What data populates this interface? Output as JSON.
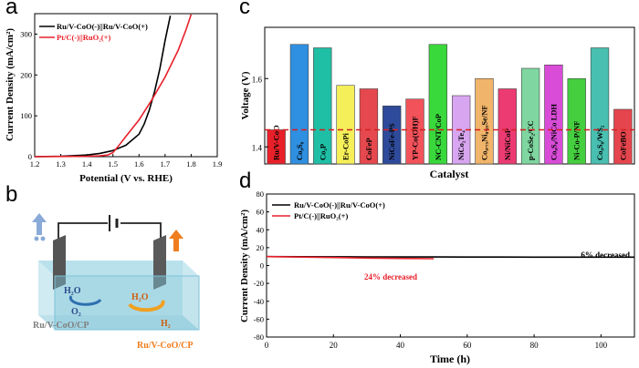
{
  "panels": {
    "a": "a",
    "b": "b",
    "c": "c",
    "d": "d"
  },
  "colors": {
    "black_curve": "#000000",
    "red_curve": "#e8202a",
    "dash_line": "#d42020",
    "cell_glass": "#a9dbe8",
    "cell_liquid": "#7cc3d8",
    "anode_arrow": "#f07d1e",
    "cathode_arrow": "#8aaad8",
    "label_gray": "#7f7f7f",
    "label_orange": "#f07d1e"
  },
  "panel_b": {
    "left_electrode_label": "Ru/V-CoO/CP",
    "right_electrode_label": "Ru/V-CoO/CP",
    "left_products": [
      "H₂O",
      "O₂"
    ],
    "right_products": [
      "H₂O",
      "H₂"
    ]
  },
  "chart_data": [
    {
      "id": "a",
      "type": "line",
      "xlabel": "Potential (V vs. RHE)",
      "ylabel": "Current Density (mA/cm²)",
      "xlim": [
        1.2,
        1.9
      ],
      "ylim": [
        0,
        350
      ],
      "xticks": [
        "1.2",
        "1.3",
        "1.4",
        "1.5",
        "1.6",
        "1.7",
        "1.8",
        "1.9"
      ],
      "yticks": [
        "0",
        "100",
        "200",
        "300"
      ],
      "legend_position": "top-left",
      "series": [
        {
          "name": "Ru/V-CoO(-)||Ru/V-CoO(+)",
          "color": "#000000",
          "x": [
            1.2,
            1.3,
            1.4,
            1.45,
            1.5,
            1.55,
            1.6,
            1.62,
            1.64,
            1.66,
            1.68,
            1.7,
            1.72
          ],
          "y": [
            0,
            1,
            4,
            8,
            15,
            28,
            55,
            80,
            115,
            160,
            215,
            285,
            345
          ]
        },
        {
          "name": "Pt/C(-)||RuO₂(+)",
          "color": "#e8202a",
          "x": [
            1.2,
            1.3,
            1.4,
            1.45,
            1.48,
            1.5,
            1.52,
            1.55,
            1.6,
            1.65,
            1.7,
            1.75,
            1.78,
            1.8
          ],
          "y": [
            0,
            0.5,
            1,
            2,
            4,
            10,
            25,
            50,
            90,
            140,
            195,
            260,
            310,
            348
          ]
        }
      ]
    },
    {
      "id": "c",
      "type": "bar",
      "xlabel": "Catalyst",
      "ylabel": "Voltage (V)",
      "ylim": [
        1.35,
        1.75
      ],
      "yticks": [
        "1.4",
        "1.6"
      ],
      "reference_line": 1.45,
      "categories": [
        "Ru/V-CoO",
        "Co₉S₈",
        "Co₂P",
        "Er-CoPi",
        "CoFeP",
        "NiCoFe-PS",
        "YP-Co(OH)F",
        "NC-CNT/CoP",
        "NiCo₂Te₄",
        "Co₀.₇₅Ni₀.₂₅Se/NF",
        "Ni/NiCoP",
        "p-CoSe₂/CC",
        "Co₉S₈/NiCo LDH",
        "Ni-Co-P/NF",
        "Co₉S₈/WS₂",
        "CoFeBO"
      ],
      "values": [
        1.45,
        1.7,
        1.69,
        1.58,
        1.57,
        1.52,
        1.54,
        1.7,
        1.55,
        1.6,
        1.57,
        1.63,
        1.64,
        1.6,
        1.69,
        1.51
      ],
      "colors": [
        "#e8202a",
        "#2f8fe0",
        "#1fbfa5",
        "#f5ef5a",
        "#e5484e",
        "#2e4a9a",
        "#f2525a",
        "#39d83b",
        "#d8a6f0",
        "#f0b46a",
        "#ec3b72",
        "#7fd6a0",
        "#d84cd8",
        "#45cf3f",
        "#48bfb0",
        "#e5454d"
      ]
    },
    {
      "id": "d",
      "type": "line",
      "xlabel": "Time (h)",
      "ylabel": "Current Density (mA/cm²)",
      "xlim": [
        0,
        110
      ],
      "ylim": [
        -80,
        80
      ],
      "xticks": [
        "0",
        "20",
        "40",
        "60",
        "80",
        "100"
      ],
      "yticks": [
        "-80",
        "-60",
        "-40",
        "-20",
        "0",
        "20",
        "40",
        "60",
        "80"
      ],
      "legend_position": "top-left",
      "annotations": [
        "6% decreased",
        "24% decreased"
      ],
      "series": [
        {
          "name": "Ru/V-CoO(-)||Ru/V-CoO(+)",
          "color": "#000000",
          "x": [
            0,
            10,
            20,
            30,
            40,
            50,
            60,
            70,
            80,
            90,
            100,
            110
          ],
          "y": [
            10,
            9.9,
            9.8,
            9.7,
            9.6,
            9.6,
            9.5,
            9.5,
            9.4,
            9.4,
            9.4,
            9.4
          ]
        },
        {
          "name": "Pt/C(-)||RuO₂(+)",
          "color": "#e8202a",
          "x": [
            0,
            10,
            20,
            30,
            40,
            50
          ],
          "y": [
            10,
            9.5,
            9.0,
            8.4,
            7.9,
            7.6
          ]
        }
      ]
    }
  ]
}
